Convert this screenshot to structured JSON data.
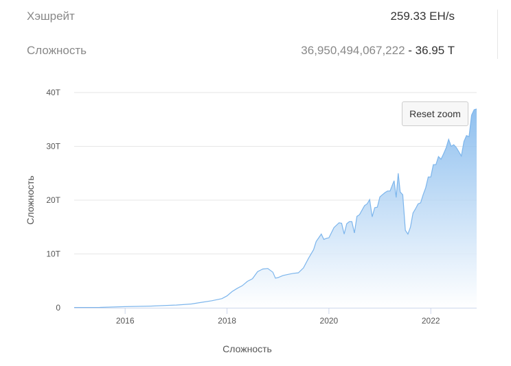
{
  "stats": {
    "hashrate": {
      "label": "Хэшрейт",
      "value": "259.33 EH/s"
    },
    "difficulty": {
      "label": "Сложность",
      "raw": "36,950,494,067,222",
      "sep": " - ",
      "short": "36.95 T"
    }
  },
  "reset_zoom_label": "Reset zoom",
  "chart_data": {
    "type": "area",
    "title": "",
    "xlabel": "Сложность",
    "ylabel": "Сложность",
    "xlim": [
      2015.0,
      2022.9
    ],
    "ylim": [
      0,
      40
    ],
    "y_unit": "T",
    "grid": true,
    "legend": "none",
    "y_ticks": [
      {
        "value": 0,
        "label": "0"
      },
      {
        "value": 10,
        "label": "10T"
      },
      {
        "value": 20,
        "label": "20T"
      },
      {
        "value": 30,
        "label": "30T"
      },
      {
        "value": 40,
        "label": "40T"
      }
    ],
    "x_ticks": [
      {
        "value": 2016,
        "label": "2016"
      },
      {
        "value": 2018,
        "label": "2018"
      },
      {
        "value": 2020,
        "label": "2020"
      },
      {
        "value": 2022,
        "label": "2022"
      }
    ],
    "colors": {
      "line": "#7cb5ec",
      "fill_top": "#7cb5ec",
      "fill_bottom": "#ffffff",
      "grid": "#e6e6e6",
      "axis": "#ccd6eb"
    },
    "x": [
      2015.0,
      2015.5,
      2016.0,
      2016.5,
      2017.0,
      2017.3,
      2017.5,
      2017.7,
      2017.9,
      2018.0,
      2018.1,
      2018.2,
      2018.3,
      2018.4,
      2018.5,
      2018.6,
      2018.7,
      2018.8,
      2018.9,
      2018.95,
      2019.0,
      2019.1,
      2019.2,
      2019.3,
      2019.4,
      2019.5,
      2019.6,
      2019.7,
      2019.75,
      2019.8,
      2019.85,
      2019.9,
      2019.95,
      2020.0,
      2020.1,
      2020.2,
      2020.25,
      2020.3,
      2020.35,
      2020.4,
      2020.45,
      2020.5,
      2020.55,
      2020.6,
      2020.7,
      2020.75,
      2020.8,
      2020.85,
      2020.9,
      2020.95,
      2021.0,
      2021.05,
      2021.1,
      2021.15,
      2021.2,
      2021.25,
      2021.28,
      2021.32,
      2021.36,
      2021.4,
      2021.45,
      2021.5,
      2021.55,
      2021.6,
      2021.65,
      2021.7,
      2021.75,
      2021.8,
      2021.85,
      2021.9,
      2021.95,
      2022.0,
      2022.05,
      2022.1,
      2022.15,
      2022.2,
      2022.25,
      2022.3,
      2022.35,
      2022.4,
      2022.45,
      2022.5,
      2022.55,
      2022.6,
      2022.65,
      2022.7,
      2022.75,
      2022.8,
      2022.85,
      2022.9
    ],
    "values": [
      0.05,
      0.07,
      0.2,
      0.3,
      0.5,
      0.7,
      1.0,
      1.3,
      1.7,
      2.2,
      3.0,
      3.6,
      4.1,
      4.9,
      5.4,
      6.7,
      7.2,
      7.3,
      6.6,
      5.5,
      5.6,
      6.0,
      6.2,
      6.4,
      6.5,
      7.4,
      9.2,
      10.8,
      12.3,
      13.0,
      13.7,
      12.7,
      12.9,
      13.0,
      14.9,
      15.8,
      15.7,
      13.7,
      15.6,
      16.0,
      16.0,
      13.9,
      17.0,
      17.3,
      19.0,
      19.3,
      20.1,
      16.9,
      18.6,
      18.7,
      20.6,
      21.0,
      21.4,
      21.7,
      21.7,
      22.9,
      23.6,
      20.5,
      25.0,
      21.5,
      21.0,
      14.4,
      13.7,
      15.0,
      17.6,
      18.4,
      19.3,
      19.5,
      21.0,
      22.3,
      24.3,
      24.3,
      26.6,
      26.6,
      28.1,
      27.6,
      28.6,
      29.7,
      31.3,
      30.0,
      30.3,
      29.8,
      29.0,
      28.2,
      30.9,
      32.0,
      31.8,
      35.8,
      36.8,
      36.95
    ]
  }
}
